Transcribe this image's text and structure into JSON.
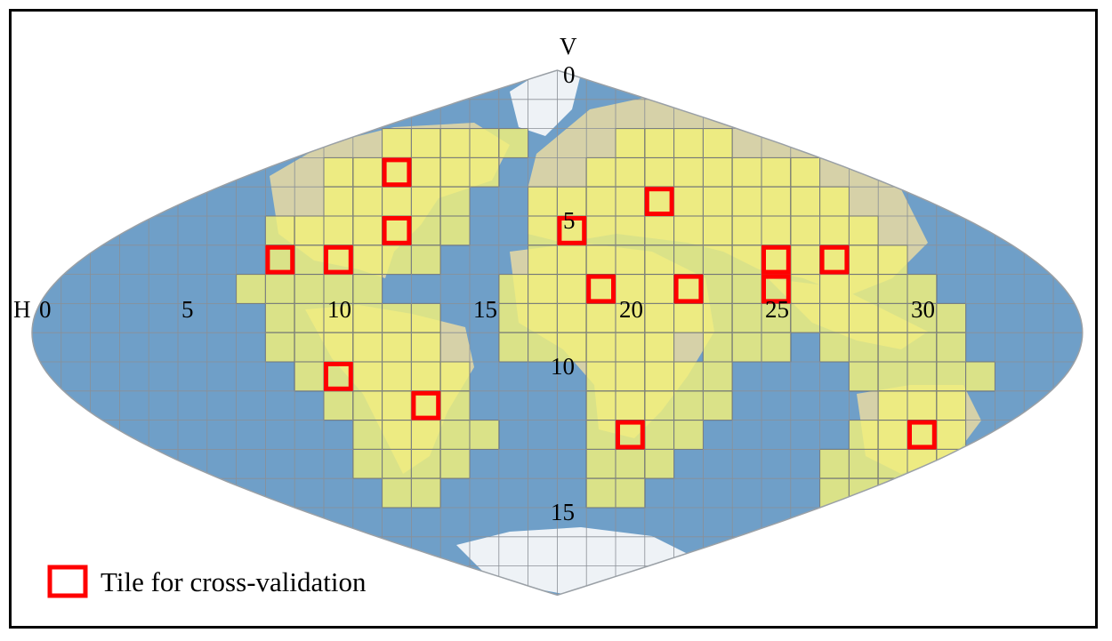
{
  "map": {
    "projection": "sinusoidal",
    "grid": {
      "h_tiles": 36,
      "v_tiles": 18
    },
    "axis_labels": {
      "horizontal": "H",
      "vertical": "V"
    },
    "h_ticks": [
      {
        "tile": 0,
        "label": "0"
      },
      {
        "tile": 5,
        "label": "5"
      },
      {
        "tile": 10,
        "label": "10"
      },
      {
        "tile": 15,
        "label": "15"
      },
      {
        "tile": 20,
        "label": "20"
      },
      {
        "tile": 25,
        "label": "25"
      },
      {
        "tile": 30,
        "label": "30"
      }
    ],
    "v_ticks": [
      {
        "tile": 0,
        "label": "0"
      },
      {
        "tile": 5,
        "label": "5"
      },
      {
        "tile": 10,
        "label": "10"
      },
      {
        "tile": 15,
        "label": "15"
      }
    ],
    "colors": {
      "ocean": "#6f9fc8",
      "land": "#d6d1a8",
      "ice": "#eef2f6",
      "grid_line": "#8a8f96",
      "selected_tile": "#f2f07a",
      "selected_tile_border": "#1a1a1a",
      "validation_tile": "#ff0000"
    },
    "selected_tiles": [
      [
        2,
        12
      ],
      [
        2,
        13
      ],
      [
        2,
        14
      ],
      [
        2,
        15
      ],
      [
        2,
        16
      ],
      [
        3,
        10
      ],
      [
        3,
        11
      ],
      [
        3,
        12
      ],
      [
        3,
        13
      ],
      [
        3,
        14
      ],
      [
        3,
        15
      ],
      [
        4,
        10
      ],
      [
        4,
        11
      ],
      [
        4,
        12
      ],
      [
        4,
        13
      ],
      [
        4,
        14
      ],
      [
        5,
        8
      ],
      [
        5,
        9
      ],
      [
        5,
        10
      ],
      [
        5,
        11
      ],
      [
        5,
        12
      ],
      [
        5,
        13
      ],
      [
        5,
        14
      ],
      [
        6,
        8
      ],
      [
        6,
        9
      ],
      [
        6,
        10
      ],
      [
        6,
        11
      ],
      [
        6,
        12
      ],
      [
        6,
        13
      ],
      [
        7,
        7
      ],
      [
        7,
        8
      ],
      [
        7,
        9
      ],
      [
        7,
        10
      ],
      [
        7,
        11
      ],
      [
        8,
        8
      ],
      [
        8,
        9
      ],
      [
        8,
        10
      ],
      [
        8,
        11
      ],
      [
        8,
        12
      ],
      [
        8,
        13
      ],
      [
        9,
        8
      ],
      [
        9,
        9
      ],
      [
        9,
        10
      ],
      [
        9,
        11
      ],
      [
        9,
        12
      ],
      [
        9,
        13
      ],
      [
        10,
        9
      ],
      [
        10,
        10
      ],
      [
        10,
        11
      ],
      [
        10,
        12
      ],
      [
        10,
        13
      ],
      [
        10,
        14
      ],
      [
        11,
        10
      ],
      [
        11,
        11
      ],
      [
        11,
        12
      ],
      [
        11,
        13
      ],
      [
        11,
        14
      ],
      [
        12,
        11
      ],
      [
        12,
        12
      ],
      [
        12,
        13
      ],
      [
        12,
        14
      ],
      [
        12,
        15
      ],
      [
        13,
        11
      ],
      [
        13,
        12
      ],
      [
        13,
        13
      ],
      [
        13,
        14
      ],
      [
        14,
        12
      ],
      [
        14,
        13
      ],
      [
        3,
        19
      ],
      [
        3,
        20
      ],
      [
        3,
        21
      ],
      [
        3,
        22
      ],
      [
        3,
        23
      ],
      [
        3,
        24
      ],
      [
        3,
        25
      ],
      [
        3,
        26
      ],
      [
        2,
        20
      ],
      [
        2,
        21
      ],
      [
        2,
        22
      ],
      [
        2,
        23
      ],
      [
        4,
        17
      ],
      [
        4,
        18
      ],
      [
        4,
        19
      ],
      [
        4,
        20
      ],
      [
        4,
        21
      ],
      [
        4,
        22
      ],
      [
        4,
        23
      ],
      [
        4,
        24
      ],
      [
        4,
        25
      ],
      [
        4,
        26
      ],
      [
        4,
        27
      ],
      [
        5,
        17
      ],
      [
        5,
        18
      ],
      [
        5,
        19
      ],
      [
        5,
        20
      ],
      [
        5,
        21
      ],
      [
        5,
        22
      ],
      [
        5,
        23
      ],
      [
        5,
        24
      ],
      [
        5,
        25
      ],
      [
        5,
        26
      ],
      [
        5,
        27
      ],
      [
        5,
        28
      ],
      [
        6,
        17
      ],
      [
        6,
        18
      ],
      [
        6,
        19
      ],
      [
        6,
        20
      ],
      [
        6,
        21
      ],
      [
        6,
        22
      ],
      [
        6,
        23
      ],
      [
        6,
        24
      ],
      [
        6,
        25
      ],
      [
        6,
        26
      ],
      [
        6,
        27
      ],
      [
        6,
        28
      ],
      [
        6,
        29
      ],
      [
        7,
        16
      ],
      [
        7,
        17
      ],
      [
        7,
        18
      ],
      [
        7,
        19
      ],
      [
        7,
        20
      ],
      [
        7,
        21
      ],
      [
        7,
        22
      ],
      [
        7,
        23
      ],
      [
        7,
        24
      ],
      [
        7,
        25
      ],
      [
        7,
        26
      ],
      [
        7,
        27
      ],
      [
        7,
        28
      ],
      [
        7,
        29
      ],
      [
        7,
        30
      ],
      [
        8,
        16
      ],
      [
        8,
        17
      ],
      [
        8,
        18
      ],
      [
        8,
        19
      ],
      [
        8,
        20
      ],
      [
        8,
        21
      ],
      [
        8,
        22
      ],
      [
        8,
        23
      ],
      [
        8,
        24
      ],
      [
        8,
        25
      ],
      [
        8,
        26
      ],
      [
        8,
        27
      ],
      [
        8,
        28
      ],
      [
        8,
        29
      ],
      [
        8,
        30
      ],
      [
        8,
        31
      ],
      [
        9,
        16
      ],
      [
        9,
        17
      ],
      [
        9,
        18
      ],
      [
        9,
        19
      ],
      [
        9,
        20
      ],
      [
        9,
        21
      ],
      [
        9,
        23
      ],
      [
        9,
        24
      ],
      [
        9,
        25
      ],
      [
        9,
        27
      ],
      [
        9,
        28
      ],
      [
        9,
        29
      ],
      [
        9,
        30
      ],
      [
        9,
        31
      ],
      [
        10,
        19
      ],
      [
        10,
        20
      ],
      [
        10,
        21
      ],
      [
        10,
        22
      ],
      [
        10,
        23
      ],
      [
        10,
        28
      ],
      [
        10,
        29
      ],
      [
        10,
        30
      ],
      [
        10,
        31
      ],
      [
        10,
        32
      ],
      [
        11,
        19
      ],
      [
        11,
        20
      ],
      [
        11,
        21
      ],
      [
        11,
        22
      ],
      [
        11,
        23
      ],
      [
        11,
        29
      ],
      [
        11,
        30
      ],
      [
        11,
        31
      ],
      [
        12,
        19
      ],
      [
        12,
        20
      ],
      [
        12,
        21
      ],
      [
        12,
        22
      ],
      [
        12,
        28
      ],
      [
        12,
        29
      ],
      [
        12,
        30
      ],
      [
        12,
        31
      ],
      [
        13,
        19
      ],
      [
        13,
        20
      ],
      [
        13,
        21
      ],
      [
        13,
        27
      ],
      [
        13,
        28
      ],
      [
        13,
        29
      ],
      [
        13,
        30
      ],
      [
        13,
        31
      ],
      [
        13,
        32
      ],
      [
        14,
        19
      ],
      [
        14,
        20
      ],
      [
        14,
        27
      ],
      [
        14,
        28
      ],
      [
        14,
        29
      ],
      [
        14,
        30
      ],
      [
        14,
        31
      ],
      [
        15,
        28
      ],
      [
        15,
        29
      ],
      [
        15,
        30
      ]
    ],
    "validation_tiles": [
      [
        3,
        12
      ],
      [
        5,
        12
      ],
      [
        6,
        8
      ],
      [
        6,
        10
      ],
      [
        10,
        10
      ],
      [
        11,
        13
      ],
      [
        12,
        20
      ],
      [
        4,
        21
      ],
      [
        5,
        18
      ],
      [
        7,
        19
      ],
      [
        7,
        22
      ],
      [
        6,
        25
      ],
      [
        7,
        25
      ],
      [
        6,
        27
      ],
      [
        12,
        30
      ]
    ]
  },
  "legend": {
    "label": "Tile for cross-validation"
  }
}
